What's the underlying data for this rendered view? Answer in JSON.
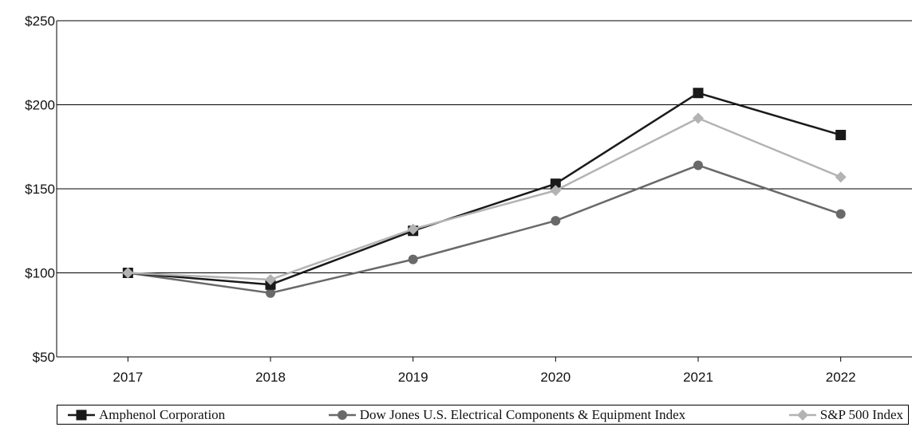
{
  "chart_data": {
    "type": "line",
    "categories": [
      "2017",
      "2018",
      "2019",
      "2020",
      "2021",
      "2022"
    ],
    "ylim": [
      50,
      250
    ],
    "y_ticks": [
      50,
      100,
      150,
      200,
      250
    ],
    "y_tick_labels": [
      "$50",
      "$100",
      "$150",
      "$200",
      "$250"
    ],
    "grid": "horizontal",
    "legend_position": "bottom",
    "series": [
      {
        "name": "Amphenol Corporation",
        "marker": "square",
        "color": "#1a1a1a",
        "values": [
          100,
          93,
          125,
          153,
          207,
          182
        ]
      },
      {
        "name": "Dow Jones U.S. Electrical Components & Equipment Index",
        "marker": "circle",
        "color": "#696969",
        "values": [
          100,
          88,
          108,
          131,
          164,
          135
        ]
      },
      {
        "name": "S&P 500 Index",
        "marker": "diamond",
        "color": "#b3b3b3",
        "values": [
          100,
          96,
          126,
          149,
          192,
          157
        ]
      }
    ]
  }
}
